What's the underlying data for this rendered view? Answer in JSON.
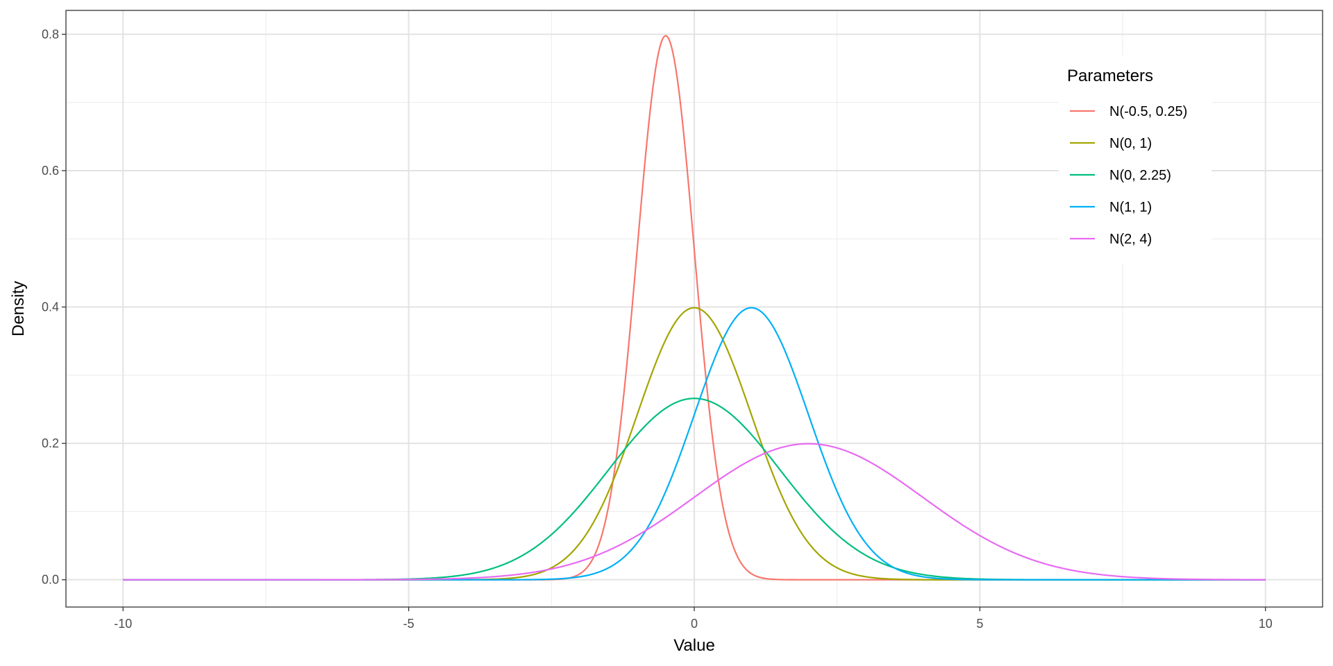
{
  "chart_data": {
    "type": "line",
    "title": "",
    "xlabel": "Value",
    "ylabel": "Density",
    "xlim": [
      -11,
      11
    ],
    "ylim": [
      -0.04,
      0.835
    ],
    "x_ticks": [
      -10,
      -5,
      0,
      5,
      10
    ],
    "x_tick_labels": [
      "-10",
      "-5",
      "0",
      "5",
      "10"
    ],
    "y_ticks": [
      0.0,
      0.2,
      0.4,
      0.6,
      0.8
    ],
    "y_tick_labels": [
      "0.0",
      "0.2",
      "0.4",
      "0.6",
      "0.8"
    ],
    "x_range": [
      -10,
      10
    ],
    "grid": true,
    "legend": {
      "title": "Parameters",
      "position": "top-right"
    },
    "series": [
      {
        "name": "N(-0.5, 0.25)",
        "mean": -0.5,
        "variance": 0.25,
        "color": "#F8766D"
      },
      {
        "name": "N(0, 1)",
        "mean": 0,
        "variance": 1,
        "color": "#A3A500"
      },
      {
        "name": "N(0, 2.25)",
        "mean": 0,
        "variance": 2.25,
        "color": "#00BF7D"
      },
      {
        "name": "N(1, 1)",
        "mean": 1,
        "variance": 1,
        "color": "#00B0F6"
      },
      {
        "name": "N(2, 4)",
        "mean": 2,
        "variance": 4,
        "color": "#E76BF3"
      }
    ]
  }
}
